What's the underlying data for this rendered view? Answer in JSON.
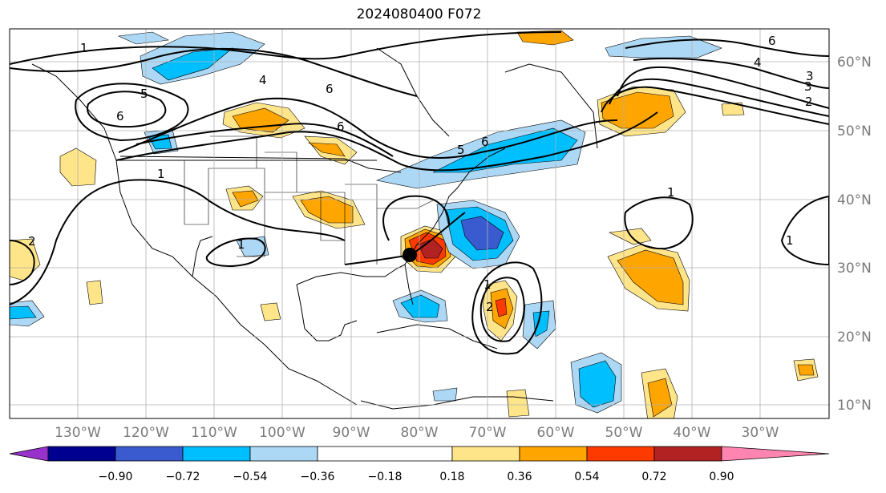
{
  "title": "2024080400 F072",
  "map": {
    "lon_labels": [
      "130°W",
      "120°W",
      "110°W",
      "100°W",
      "90°W",
      "80°W",
      "70°W",
      "60°W",
      "50°W",
      "40°W",
      "30°W"
    ],
    "lat_labels": [
      "60°N",
      "50°N",
      "40°N",
      "30°N",
      "20°N",
      "10°N"
    ],
    "contour_labels": [
      "1",
      "1",
      "1",
      "1",
      "1",
      "1",
      "2",
      "2",
      "2",
      "3",
      "3",
      "4",
      "4",
      "5",
      "5",
      "6",
      "6",
      "6",
      "6",
      "6"
    ]
  },
  "colorbar": {
    "ticks": [
      "−0.90",
      "−0.72",
      "−0.54",
      "−0.36",
      "−0.18",
      "0.18",
      "0.36",
      "0.54",
      "0.72",
      "0.90"
    ],
    "colors": [
      "#9932cc",
      "#000090",
      "#3a5bd0",
      "#00bfff",
      "#add8f5",
      "#ffffff",
      "#ffe58a",
      "#ffa500",
      "#ff3a00",
      "#b22222",
      "#ff85b0"
    ]
  }
}
